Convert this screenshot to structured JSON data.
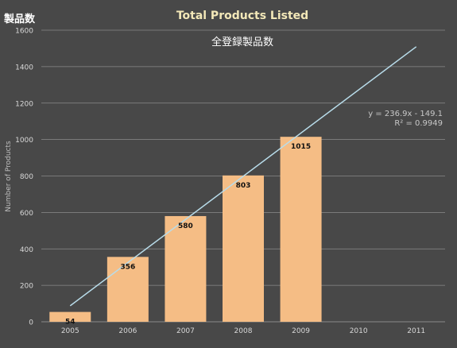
{
  "corner_label": "製品数",
  "chart_data": {
    "type": "bar",
    "title": "Total Products Listed",
    "subtitle": "全登録製品数",
    "xlabel": "",
    "ylabel": "Number of Products",
    "categories": [
      "2005",
      "2006",
      "2007",
      "2008",
      "2009",
      "2010",
      "2011"
    ],
    "values": [
      54,
      356,
      580,
      803,
      1015,
      null,
      null
    ],
    "data_labels": [
      "54",
      "356",
      "580",
      "803",
      "1015",
      "",
      ""
    ],
    "ylim": [
      0,
      1600
    ],
    "yticks": [
      0,
      200,
      400,
      600,
      800,
      1000,
      1200,
      1400,
      1600
    ],
    "grid": true,
    "trendline": {
      "type": "linear",
      "slope": 236.9,
      "intercept": -149.1,
      "x_start": 1,
      "x_end": 7,
      "equation_label": "y = 236.9x - 149.1",
      "r2_label": "R² = 0.9949"
    },
    "colors": {
      "background": "#484848",
      "bar": "#f5bd85",
      "grid": "#8a8a8a",
      "trendline": "#b8dcea",
      "title": "#f3e8b8",
      "subtitle": "#ffffff",
      "axis_text": "#d8d8d8",
      "data_label": "#111111",
      "equation_text": "#c8c8c8",
      "corner_label": "#ffffff"
    }
  }
}
